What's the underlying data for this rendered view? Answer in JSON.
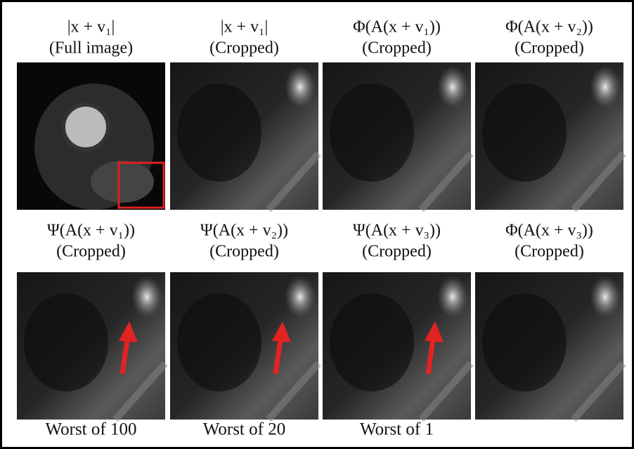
{
  "rows": [
    [
      {
        "title": "|x + v₁|",
        "subtitle": "(Full image)"
      },
      {
        "title": "|x + v₁|",
        "subtitle": "(Cropped)"
      },
      {
        "title": "Φ(A(x + v₁))",
        "subtitle": "(Cropped)"
      },
      {
        "title": "Φ(A(x + v₂))",
        "subtitle": "(Cropped)"
      }
    ],
    [
      {
        "title": "Ψ(A(x + v₁))",
        "subtitle": "(Cropped)"
      },
      {
        "title": "Ψ(A(x + v₂))",
        "subtitle": "(Cropped)"
      },
      {
        "title": "Ψ(A(x + v₃))",
        "subtitle": "(Cropped)"
      },
      {
        "title": "Φ(A(x + v₃))",
        "subtitle": "(Cropped)"
      }
    ]
  ],
  "captions": [
    "Worst of 100",
    "Worst of 20",
    "Worst of 1"
  ]
}
